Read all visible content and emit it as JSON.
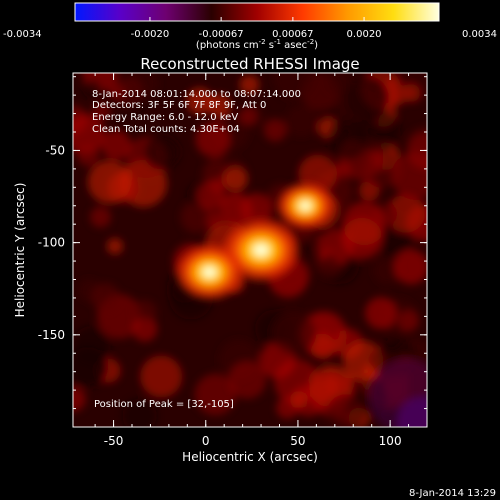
{
  "chart_data": {
    "type": "heatmap",
    "title": "Reconstructed RHESSI Image",
    "colorbar": {
      "ticks": [
        "-0.0034",
        "-0.0020",
        "-0.00067",
        "0.00067",
        "0.0020",
        "0.0034"
      ],
      "range": [
        -0.0034,
        0.0034
      ],
      "units_parts": [
        "(photons cm",
        "-2",
        " s",
        "-1",
        " asec",
        "-2",
        ")"
      ]
    },
    "info_lines": [
      " 8-Jan-2014 08:01:14.000 to 08:07:14.000",
      "Detectors: 3F 5F 6F 7F 8F 9F, Att 0",
      "Energy Range: 6.0 - 12.0 keV",
      "Clean     Total counts: 4.30E+04"
    ],
    "peak_label": "Position of Peak = [32,-105]",
    "peak": [
      32,
      -105
    ],
    "xlabel": "Heliocentric X (arcsec)",
    "ylabel": "Heliocentric Y (arcsec)",
    "xlim": [
      -72,
      120
    ],
    "ylim": [
      -200,
      -8
    ],
    "xticks": [
      {
        "value": -50,
        "label": "-50"
      },
      {
        "value": 0,
        "label": "0"
      },
      {
        "value": 50,
        "label": "50"
      },
      {
        "value": 100,
        "label": "100"
      }
    ],
    "yticks": [
      {
        "value": -50,
        "label": "-50"
      },
      {
        "value": -100,
        "label": "-100"
      },
      {
        "value": -150,
        "label": "-150"
      }
    ],
    "sources": [
      {
        "x": 30,
        "y": -104,
        "amplitude": 0.0034
      },
      {
        "x": 2,
        "y": -116,
        "amplitude": 0.003
      },
      {
        "x": 54,
        "y": -80,
        "amplitude": 0.0025
      }
    ],
    "colormap": [
      "#0018ff",
      "#5a00c8",
      "#6e0070",
      "#2a0000",
      "#a00000",
      "#ff3a00",
      "#ff9a00",
      "#ffdd10",
      "#ffffe0"
    ]
  },
  "footer_date": "8-Jan-2014 13:29"
}
